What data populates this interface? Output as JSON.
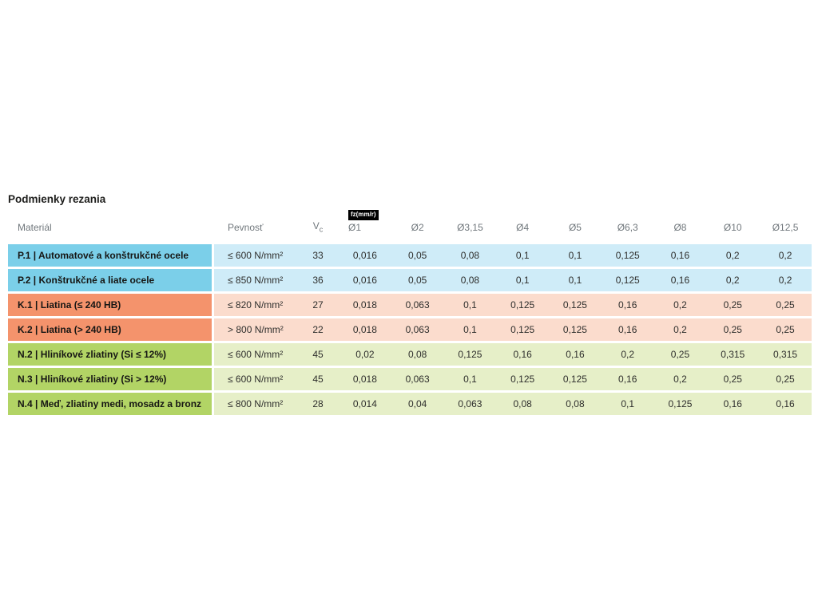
{
  "page": {
    "title": "Podmienky rezania"
  },
  "table": {
    "feed_unit_badge": "fz(mm/r)",
    "headers": {
      "material": "Materiál",
      "strength": "Pevnosť",
      "vc": "V",
      "vc_subscript": "c",
      "diameters": [
        "Ø1",
        "Ø2",
        "Ø3,15",
        "Ø4",
        "Ø5",
        "Ø6,3",
        "Ø8",
        "Ø10",
        "Ø12,5"
      ]
    },
    "rows": [
      {
        "group": "steel",
        "material": "P.1 | Automatové a konštrukčné ocele",
        "strength": "≤ 600 N/mm²",
        "vc": "33",
        "feeds": [
          "0,016",
          "0,05",
          "0,08",
          "0,1",
          "0,1",
          "0,125",
          "0,16",
          "0,2",
          "0,2"
        ]
      },
      {
        "group": "steel",
        "material": "P.2 | Konštrukčné a liate ocele",
        "strength": "≤ 850 N/mm²",
        "vc": "36",
        "feeds": [
          "0,016",
          "0,05",
          "0,08",
          "0,1",
          "0,1",
          "0,125",
          "0,16",
          "0,2",
          "0,2"
        ]
      },
      {
        "group": "cast-iron",
        "material": "K.1 | Liatina (≤ 240 HB)",
        "strength": "≤ 820 N/mm²",
        "vc": "27",
        "feeds": [
          "0,018",
          "0,063",
          "0,1",
          "0,125",
          "0,125",
          "0,16",
          "0,2",
          "0,25",
          "0,25"
        ]
      },
      {
        "group": "cast-iron",
        "material": "K.2 | Liatina (> 240 HB)",
        "strength": "> 800 N/mm²",
        "vc": "22",
        "feeds": [
          "0,018",
          "0,063",
          "0,1",
          "0,125",
          "0,125",
          "0,16",
          "0,2",
          "0,25",
          "0,25"
        ]
      },
      {
        "group": "non-ferrous",
        "material": "N.2 | Hliníkové zliatiny (Si ≤ 12%)",
        "strength": "≤ 600 N/mm²",
        "vc": "45",
        "feeds": [
          "0,02",
          "0,08",
          "0,125",
          "0,16",
          "0,16",
          "0,2",
          "0,25",
          "0,315",
          "0,315"
        ]
      },
      {
        "group": "non-ferrous",
        "material": "N.3 | Hliníkové zliatiny (Si > 12%)",
        "strength": "≤ 600 N/mm²",
        "vc": "45",
        "feeds": [
          "0,018",
          "0,063",
          "0,1",
          "0,125",
          "0,125",
          "0,16",
          "0,2",
          "0,25",
          "0,25"
        ]
      },
      {
        "group": "non-ferrous",
        "material": "N.4 | Meď, zliatiny medi, mosadz a bronz",
        "strength": "≤ 800 N/mm²",
        "vc": "28",
        "feeds": [
          "0,014",
          "0,04",
          "0,063",
          "0,08",
          "0,08",
          "0,1",
          "0,125",
          "0,16",
          "0,16"
        ]
      }
    ]
  },
  "colors": {
    "steel_header": "#7bcfe9",
    "steel_row": "#cfecf8",
    "cast_iron_header": "#f4936c",
    "cast_iron_row": "#fbdccd",
    "non_ferrous_header": "#b2d465",
    "non_ferrous_row": "#e6efc8",
    "badge_background": "#000000",
    "badge_text": "#ffffff"
  }
}
